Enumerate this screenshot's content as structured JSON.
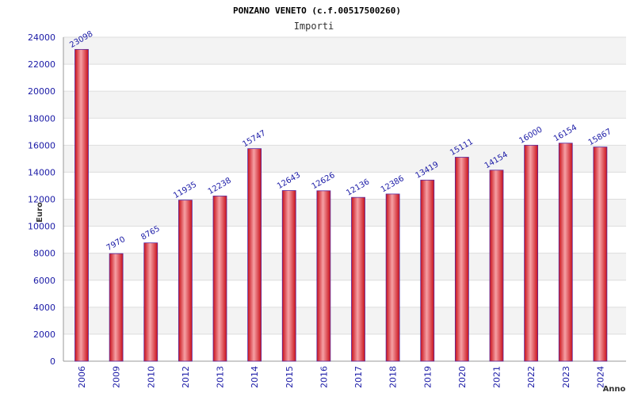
{
  "chart_data": {
    "type": "bar",
    "title": "PONZANO VENETO (c.f.00517500260)",
    "subtitle": "Importi",
    "ylabel": "Euro",
    "xlabel": "Anno",
    "ylim": [
      0,
      24000
    ],
    "yticks": [
      0,
      2000,
      4000,
      6000,
      8000,
      10000,
      12000,
      14000,
      16000,
      18000,
      20000,
      22000,
      24000
    ],
    "grid": true,
    "legend": "none",
    "categories": [
      "2006",
      "2009",
      "2010",
      "2012",
      "2013",
      "2014",
      "2015",
      "2016",
      "2017",
      "2018",
      "2019",
      "2020",
      "2021",
      "2022",
      "2023",
      "2024"
    ],
    "values": [
      23098,
      7970,
      8765,
      11935,
      12238,
      15747,
      12643,
      12626,
      12136,
      12386,
      13419,
      15111,
      14154,
      16000,
      16154,
      15867
    ],
    "colors": {
      "bar": "#e8222a",
      "bar_highlight": "#f6a0a4",
      "bar_edge": "#5a2aa0",
      "band": "#f3f3f3",
      "grid": "#dddddd",
      "tick_text": "#1a1aa6"
    }
  }
}
